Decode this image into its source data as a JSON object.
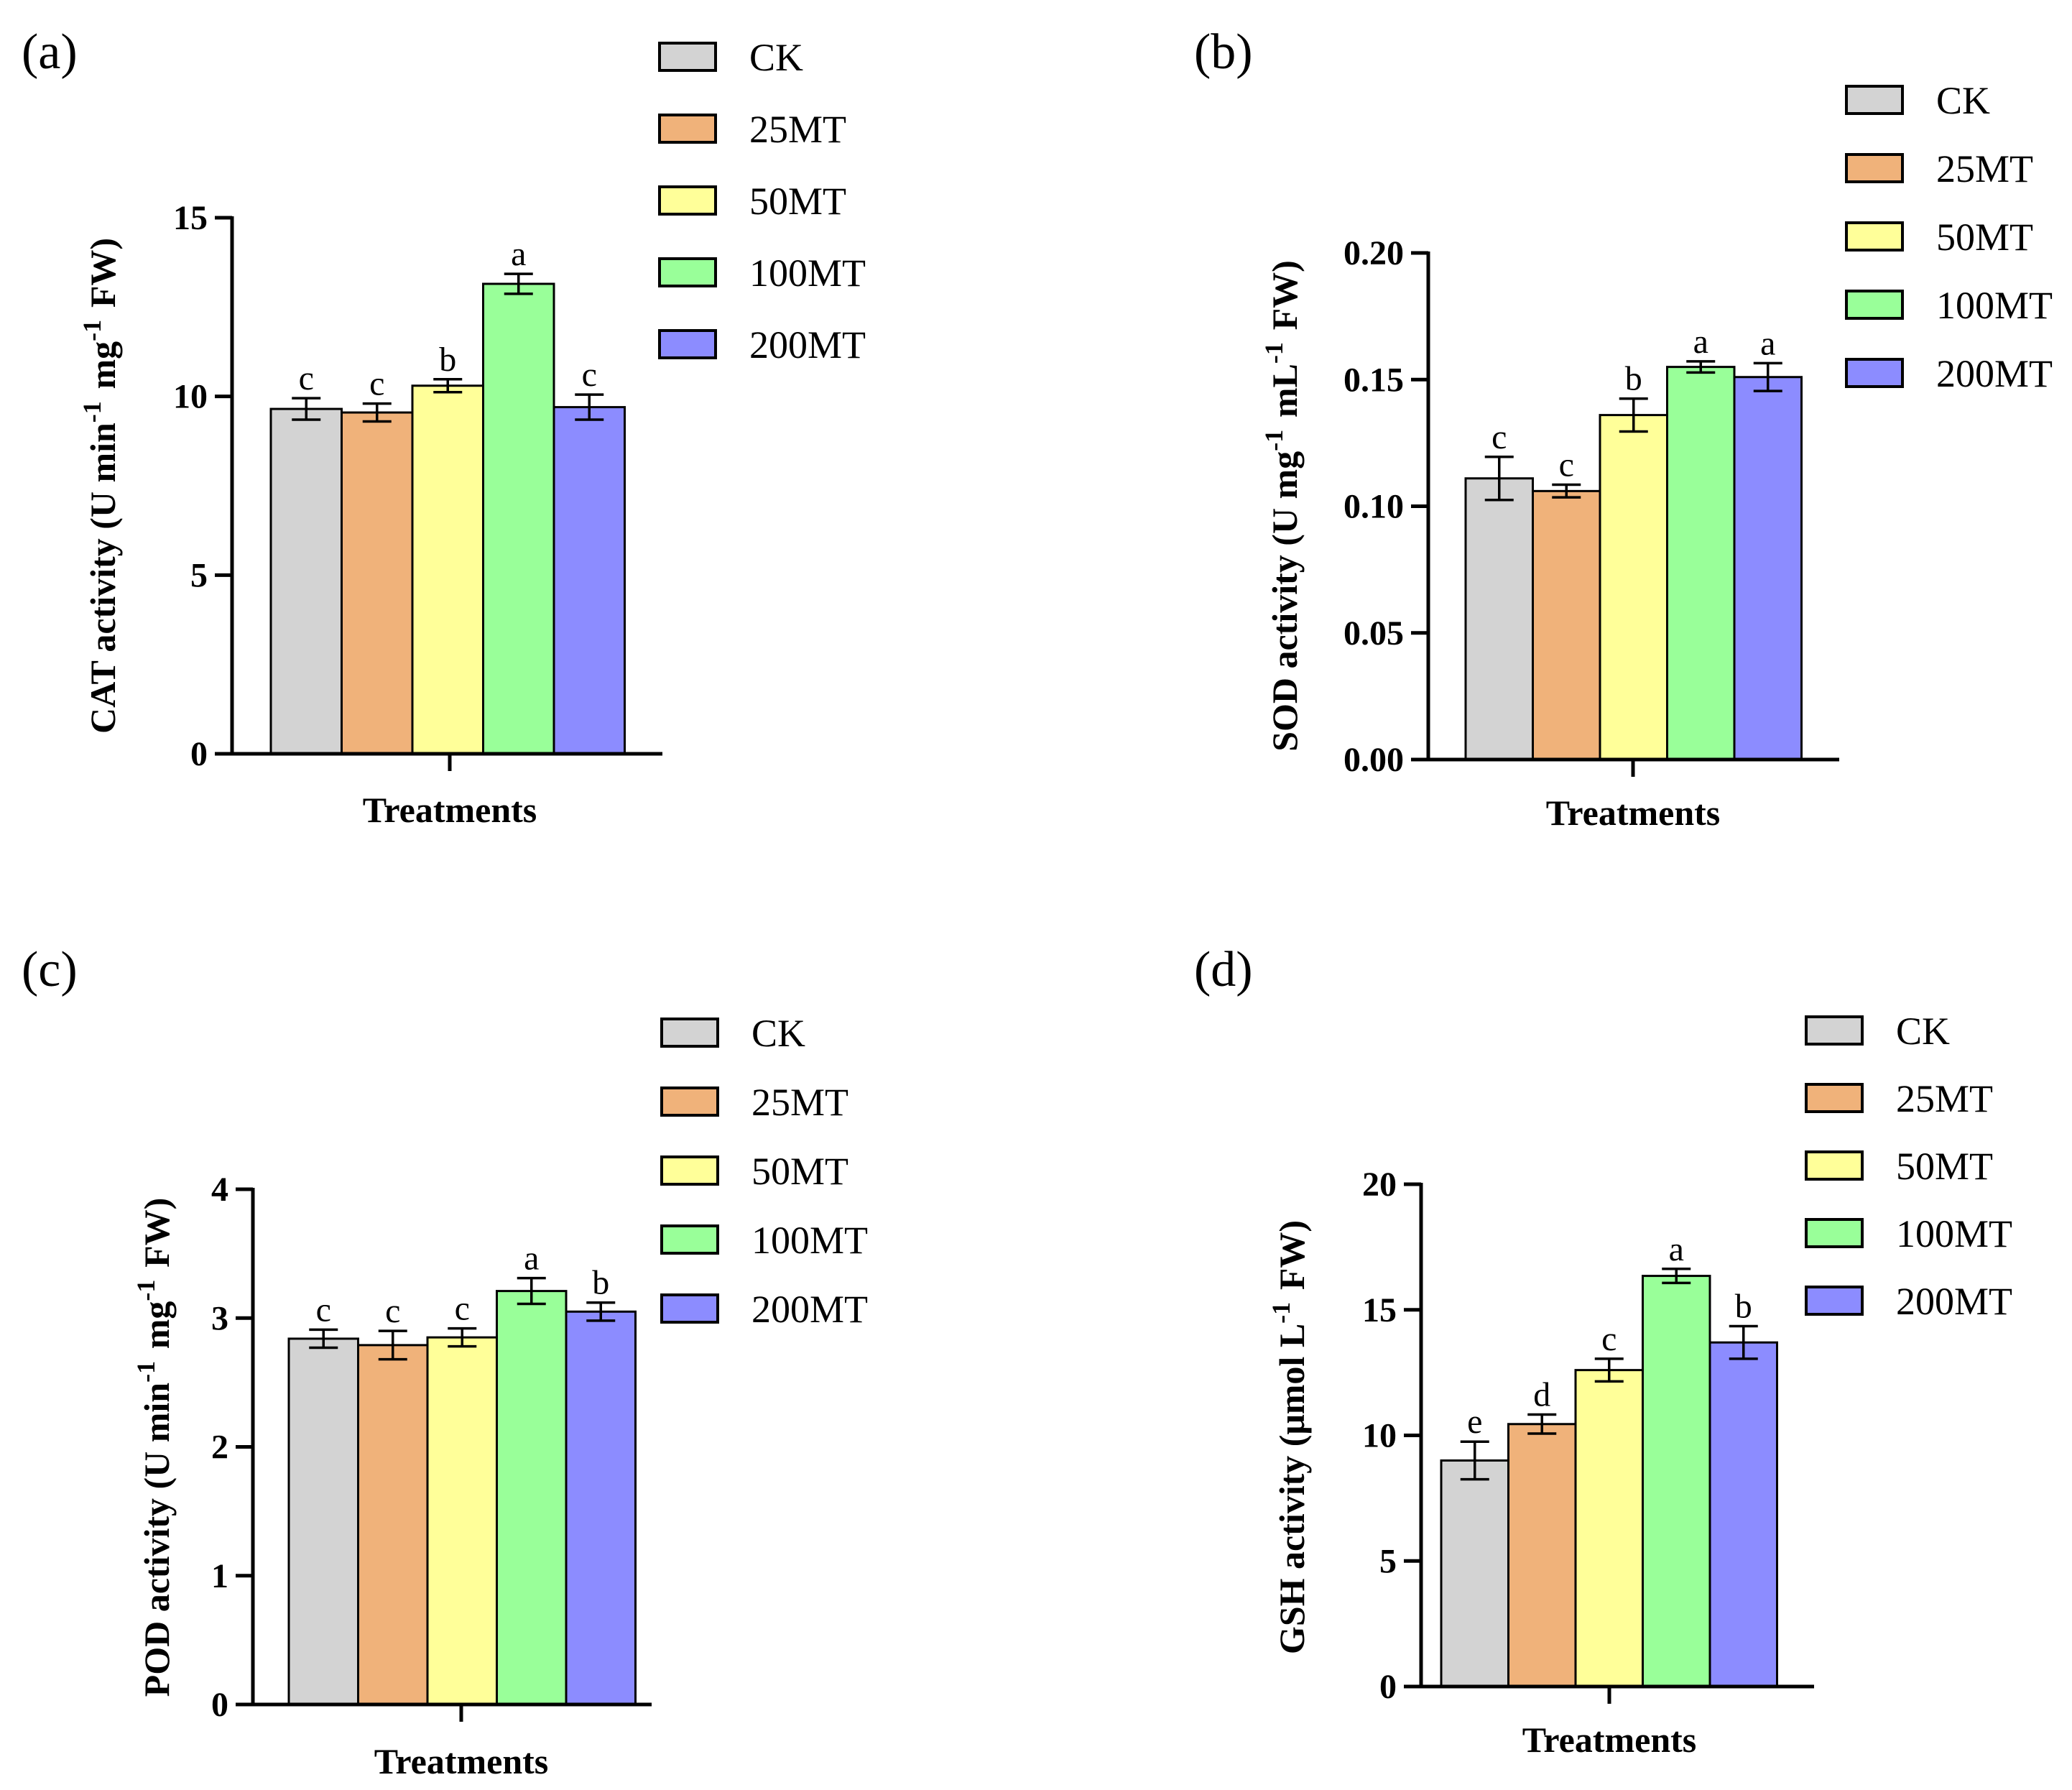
{
  "figure": {
    "legend": [
      {
        "label": "CK",
        "color": "#D3D3D3"
      },
      {
        "label": "25MT",
        "color": "#F0B27A"
      },
      {
        "label": "50MT",
        "color": "#FFFF99"
      },
      {
        "label": "100MT",
        "color": "#99FF99"
      },
      {
        "label": "200MT",
        "color": "#8C8CFF"
      }
    ]
  },
  "chart_data": [
    {
      "panel": "(a)",
      "type": "bar",
      "xlabel": "Treatments",
      "ylabel": "CAT activity (U min",
      "ylabel_parts": [
        "CAT activity (U min",
        "-1",
        " mg",
        "-1",
        " FW)"
      ],
      "ylim": [
        0,
        15
      ],
      "yticks": [
        "0",
        "5",
        "10",
        "15"
      ],
      "categories": [
        "CK",
        "25MT",
        "50MT",
        "100MT",
        "200MT"
      ],
      "values": [
        9.65,
        9.55,
        10.3,
        13.15,
        9.7
      ],
      "errors": [
        0.3,
        0.25,
        0.18,
        0.28,
        0.35
      ],
      "letters": [
        "c",
        "c",
        "b",
        "a",
        "c"
      ]
    },
    {
      "panel": "(b)",
      "type": "bar",
      "xlabel": "Treatments",
      "ylabel_parts": [
        "SOD activity (U mg",
        "-1",
        " mL",
        "-1",
        " FW)"
      ],
      "ylim": [
        0,
        0.2
      ],
      "yticks": [
        "0.00",
        "0.05",
        "0.10",
        "0.15",
        "0.20"
      ],
      "categories": [
        "CK",
        "25MT",
        "50MT",
        "100MT",
        "200MT"
      ],
      "values": [
        0.111,
        0.106,
        0.136,
        0.155,
        0.151
      ],
      "errors": [
        0.0085,
        0.0025,
        0.0065,
        0.0022,
        0.0055
      ],
      "letters": [
        "c",
        "c",
        "b",
        "a",
        "a"
      ]
    },
    {
      "panel": "(c)",
      "type": "bar",
      "xlabel": "Treatments",
      "ylabel_parts": [
        "POD activity (U min",
        "-1",
        " mg",
        "-1",
        " FW)"
      ],
      "ylim": [
        0,
        4
      ],
      "yticks": [
        "0",
        "1",
        "2",
        "3",
        "4"
      ],
      "categories": [
        "CK",
        "25MT",
        "50MT",
        "100MT",
        "200MT"
      ],
      "values": [
        2.84,
        2.79,
        2.85,
        3.21,
        3.05
      ],
      "errors": [
        0.07,
        0.11,
        0.07,
        0.1,
        0.07
      ],
      "letters": [
        "c",
        "c",
        "c",
        "a",
        "b"
      ]
    },
    {
      "panel": "(d)",
      "type": "bar",
      "xlabel": "Treatments",
      "ylabel_parts": [
        "GSH activity (μmol L",
        "-1",
        "  FW)"
      ],
      "ylim": [
        0,
        20
      ],
      "yticks": [
        "0",
        "5",
        "10",
        "15",
        "20"
      ],
      "categories": [
        "CK",
        "25MT",
        "50MT",
        "100MT",
        "200MT"
      ],
      "values": [
        9.0,
        10.45,
        12.6,
        16.35,
        13.7
      ],
      "errors": [
        0.75,
        0.38,
        0.45,
        0.28,
        0.65
      ],
      "letters": [
        "e",
        "d",
        "c",
        "a",
        "b"
      ]
    }
  ]
}
